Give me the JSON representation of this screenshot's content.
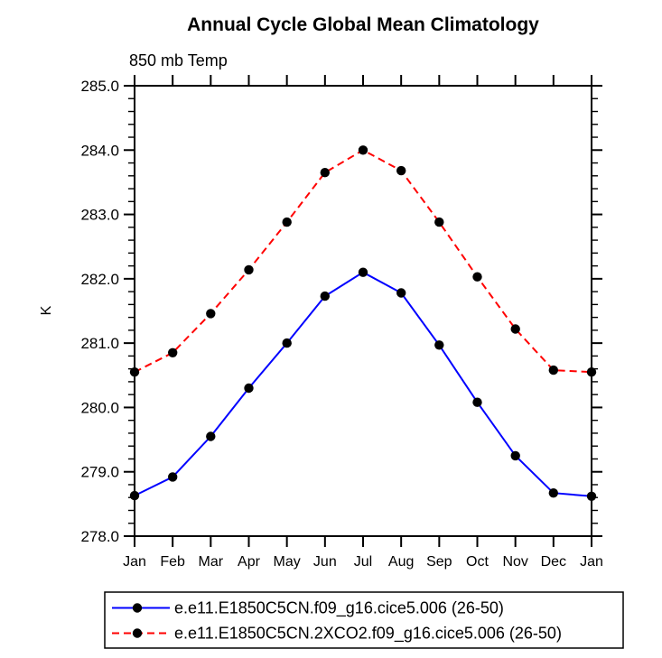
{
  "title": "Annual Cycle Global Mean Climatology",
  "subtitle": "850 mb Temp",
  "colors": {
    "background": "#ffffff",
    "axis": "#000000",
    "marker": "#000000",
    "series_control": "#0000ff",
    "series_2xco2": "#ff0000"
  },
  "chart_data": {
    "type": "line",
    "title": "Annual Cycle Global Mean Climatology",
    "subtitle": "850 mb Temp",
    "xlabel": "",
    "ylabel": "K",
    "x_categories": [
      "Jan",
      "Feb",
      "Mar",
      "Apr",
      "May",
      "Jun",
      "Jul",
      "Aug",
      "Sep",
      "Oct",
      "Nov",
      "Dec",
      "Jan"
    ],
    "ylim": [
      278.0,
      285.0
    ],
    "ytick_interval": 1.0,
    "yminor_interval": 0.2,
    "y_tick_labels": [
      "285.0",
      "284.0",
      "283.0",
      "282.0",
      "281.0",
      "280.0",
      "279.0",
      "278.0"
    ],
    "grid": false,
    "legend_position": "bottom",
    "axis_color": "#000000",
    "marker_color": "#000000",
    "marker_shape": "filled-circle",
    "series": [
      {
        "name": "e.e11.E1850C5CN.f09_g16.cice5.006 (26-50)",
        "color": "#0000ff",
        "line_style": "solid",
        "values": [
          278.63,
          278.92,
          279.55,
          280.3,
          281.0,
          281.73,
          282.1,
          281.78,
          280.97,
          280.08,
          279.25,
          278.67,
          278.62
        ]
      },
      {
        "name": "e.e11.E1850C5CN.2XCO2.f09_g16.cice5.006 (26-50)",
        "color": "#ff0000",
        "line_style": "dashed",
        "values": [
          280.55,
          280.85,
          281.46,
          282.14,
          282.88,
          283.65,
          284.0,
          283.68,
          282.88,
          282.03,
          281.22,
          280.58,
          280.55
        ]
      }
    ]
  }
}
